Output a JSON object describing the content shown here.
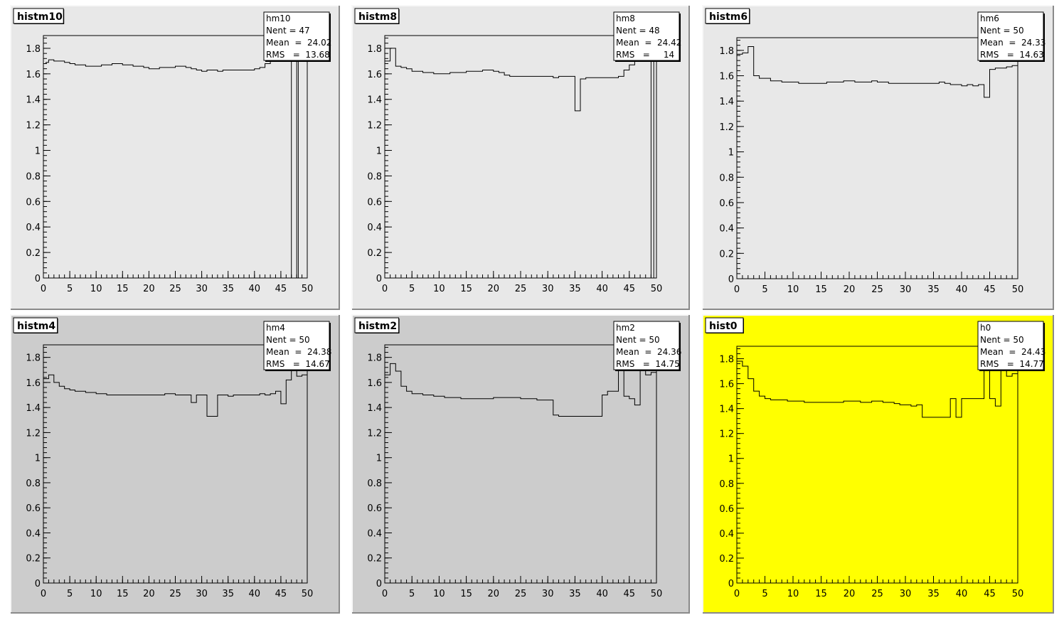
{
  "canvas": {
    "background": "#ffffff"
  },
  "chart_data": [
    {
      "type": "histogram",
      "pad_title": "histm10",
      "pad_color": "#e8e8e8",
      "stats": {
        "name": "hm10",
        "lines": [
          "Nent = 47",
          "Mean  =  24.02",
          "RMS   =  13.68"
        ]
      },
      "xlim": [
        0,
        50
      ],
      "ylim": [
        0,
        1.9
      ],
      "xticks": [
        "0",
        "5",
        "10",
        "15",
        "20",
        "25",
        "30",
        "35",
        "40",
        "45",
        "50"
      ],
      "yticks": [
        "0",
        "0.2",
        "0.4",
        "0.6",
        "0.8",
        "1",
        "1.2",
        "1.4",
        "1.6",
        "1.8"
      ],
      "bin_edges": [
        0,
        0.5,
        1,
        2,
        3,
        4,
        5,
        6,
        7,
        8,
        9,
        10,
        11,
        12,
        13,
        14,
        15,
        16,
        17,
        18,
        19,
        20,
        21,
        22,
        23,
        24,
        25,
        26,
        27,
        28,
        29,
        30,
        31,
        32,
        33,
        34,
        35,
        36,
        37,
        38,
        39,
        40,
        41,
        42,
        43,
        44,
        47,
        48,
        48.3,
        50
      ],
      "values": [
        1.68,
        1.69,
        1.71,
        1.7,
        1.7,
        1.69,
        1.68,
        1.67,
        1.67,
        1.66,
        1.66,
        1.66,
        1.67,
        1.67,
        1.68,
        1.68,
        1.67,
        1.67,
        1.66,
        1.66,
        1.65,
        1.64,
        1.64,
        1.65,
        1.65,
        1.65,
        1.66,
        1.66,
        1.65,
        1.64,
        1.63,
        1.62,
        1.63,
        1.63,
        1.62,
        1.63,
        1.63,
        1.63,
        1.63,
        1.63,
        1.63,
        1.64,
        1.65,
        1.68,
        1.9,
        1.9,
        0,
        1.9,
        0
      ]
    },
    {
      "type": "histogram",
      "pad_title": "histm8",
      "pad_color": "#e8e8e8",
      "stats": {
        "name": "hm8",
        "lines": [
          "Nent = 48",
          "Mean  =  24.42",
          "RMS   =     14"
        ]
      },
      "xlim": [
        0,
        50
      ],
      "ylim": [
        0,
        1.9
      ],
      "xticks": [
        "0",
        "5",
        "10",
        "15",
        "20",
        "25",
        "30",
        "35",
        "40",
        "45",
        "50"
      ],
      "yticks": [
        "0",
        "0.2",
        "0.4",
        "0.6",
        "0.8",
        "1",
        "1.2",
        "1.4",
        "1.6",
        "1.8"
      ],
      "bin_edges": [
        0,
        1,
        2,
        3,
        4,
        5,
        6,
        7,
        8,
        9,
        10,
        11,
        12,
        13,
        14,
        15,
        16,
        17,
        18,
        19,
        20,
        21,
        22,
        23,
        24,
        25,
        26,
        27,
        28,
        29,
        30,
        31,
        32,
        33,
        34,
        35,
        36,
        37,
        38,
        39,
        40,
        41,
        42,
        43,
        44,
        45,
        46,
        47,
        48,
        49,
        49.5,
        50
      ],
      "values": [
        1.7,
        1.8,
        1.66,
        1.65,
        1.64,
        1.62,
        1.62,
        1.61,
        1.61,
        1.6,
        1.6,
        1.6,
        1.61,
        1.61,
        1.61,
        1.62,
        1.62,
        1.62,
        1.63,
        1.63,
        1.62,
        1.61,
        1.59,
        1.58,
        1.58,
        1.58,
        1.58,
        1.58,
        1.58,
        1.58,
        1.58,
        1.57,
        1.58,
        1.58,
        1.58,
        1.31,
        1.56,
        1.57,
        1.57,
        1.57,
        1.57,
        1.57,
        1.57,
        1.58,
        1.63,
        1.67,
        1.7,
        1.74,
        1.9,
        0,
        1.9
      ]
    },
    {
      "type": "histogram",
      "pad_title": "histm6",
      "pad_color": "#e8e8e8",
      "stats": {
        "name": "hm6",
        "lines": [
          "Nent = 50",
          "Mean  =  24.33",
          "RMS   =  14.63"
        ]
      },
      "xlim": [
        0,
        50
      ],
      "ylim": [
        0,
        1.9
      ],
      "xticks": [
        "0",
        "5",
        "10",
        "15",
        "20",
        "25",
        "30",
        "35",
        "40",
        "45",
        "50"
      ],
      "yticks": [
        "0",
        "0.2",
        "0.4",
        "0.6",
        "0.8",
        "1",
        "1.2",
        "1.4",
        "1.6",
        "1.8"
      ],
      "bin_edges": [
        0,
        1,
        2,
        3,
        4,
        5,
        6,
        7,
        8,
        9,
        10,
        11,
        12,
        13,
        14,
        15,
        16,
        17,
        18,
        19,
        20,
        21,
        22,
        23,
        24,
        25,
        26,
        27,
        28,
        29,
        30,
        31,
        32,
        33,
        34,
        35,
        36,
        37,
        38,
        39,
        40,
        41,
        42,
        43,
        44,
        45,
        46,
        47,
        48,
        49,
        50
      ],
      "values": [
        1.77,
        1.78,
        1.83,
        1.6,
        1.58,
        1.58,
        1.56,
        1.56,
        1.55,
        1.55,
        1.55,
        1.54,
        1.54,
        1.54,
        1.54,
        1.54,
        1.55,
        1.55,
        1.55,
        1.56,
        1.56,
        1.55,
        1.55,
        1.55,
        1.56,
        1.55,
        1.55,
        1.54,
        1.54,
        1.54,
        1.54,
        1.54,
        1.54,
        1.54,
        1.54,
        1.54,
        1.55,
        1.54,
        1.53,
        1.53,
        1.52,
        1.53,
        1.52,
        1.53,
        1.43,
        1.65,
        1.66,
        1.66,
        1.67,
        1.68
      ]
    },
    {
      "type": "histogram",
      "pad_title": "histm4",
      "pad_color": "#cccccc",
      "stats": {
        "name": "hm4",
        "lines": [
          "Nent = 50",
          "Mean  =  24.38",
          "RMS   =  14.67"
        ]
      },
      "xlim": [
        0,
        50
      ],
      "ylim": [
        0,
        1.9
      ],
      "xticks": [
        "0",
        "5",
        "10",
        "15",
        "20",
        "25",
        "30",
        "35",
        "40",
        "45",
        "50"
      ],
      "yticks": [
        "0",
        "0.2",
        "0.4",
        "0.6",
        "0.8",
        "1",
        "1.2",
        "1.4",
        "1.6",
        "1.8"
      ],
      "bin_edges": [
        0,
        1,
        2,
        3,
        4,
        5,
        6,
        7,
        8,
        9,
        10,
        11,
        12,
        13,
        14,
        15,
        16,
        17,
        18,
        19,
        20,
        21,
        22,
        23,
        24,
        25,
        26,
        27,
        28,
        29,
        30,
        31,
        32,
        33,
        34,
        35,
        36,
        37,
        38,
        39,
        40,
        41,
        42,
        43,
        44,
        45,
        46,
        47,
        48,
        49,
        50
      ],
      "values": [
        1.63,
        1.66,
        1.6,
        1.57,
        1.55,
        1.54,
        1.53,
        1.53,
        1.52,
        1.52,
        1.51,
        1.51,
        1.5,
        1.5,
        1.5,
        1.5,
        1.5,
        1.5,
        1.5,
        1.5,
        1.5,
        1.5,
        1.5,
        1.51,
        1.51,
        1.5,
        1.5,
        1.5,
        1.44,
        1.5,
        1.5,
        1.33,
        1.33,
        1.5,
        1.5,
        1.49,
        1.5,
        1.5,
        1.5,
        1.5,
        1.5,
        1.51,
        1.5,
        1.51,
        1.53,
        1.43,
        1.62,
        1.7,
        1.65,
        1.66
      ]
    },
    {
      "type": "histogram",
      "pad_title": "histm2",
      "pad_color": "#cccccc",
      "stats": {
        "name": "hm2",
        "lines": [
          "Nent = 50",
          "Mean  =  24.36",
          "RMS   =  14.75"
        ]
      },
      "xlim": [
        0,
        50
      ],
      "ylim": [
        0,
        1.9
      ],
      "xticks": [
        "0",
        "5",
        "10",
        "15",
        "20",
        "25",
        "30",
        "35",
        "40",
        "45",
        "50"
      ],
      "yticks": [
        "0",
        "0.2",
        "0.4",
        "0.6",
        "0.8",
        "1",
        "1.2",
        "1.4",
        "1.6",
        "1.8"
      ],
      "bin_edges": [
        0,
        1,
        2,
        3,
        4,
        5,
        6,
        7,
        8,
        9,
        10,
        11,
        12,
        13,
        14,
        15,
        16,
        17,
        18,
        19,
        20,
        21,
        22,
        23,
        24,
        25,
        26,
        27,
        28,
        29,
        30,
        31,
        32,
        33,
        34,
        35,
        36,
        37,
        38,
        39,
        40,
        41,
        42,
        43,
        44,
        45,
        46,
        47,
        48,
        49,
        50
      ],
      "values": [
        1.66,
        1.75,
        1.69,
        1.57,
        1.53,
        1.51,
        1.51,
        1.5,
        1.5,
        1.49,
        1.49,
        1.48,
        1.48,
        1.48,
        1.47,
        1.47,
        1.47,
        1.47,
        1.47,
        1.47,
        1.48,
        1.48,
        1.48,
        1.48,
        1.48,
        1.47,
        1.47,
        1.47,
        1.46,
        1.46,
        1.46,
        1.34,
        1.33,
        1.33,
        1.33,
        1.33,
        1.33,
        1.33,
        1.33,
        1.33,
        1.5,
        1.53,
        1.53,
        1.9,
        1.49,
        1.47,
        1.42,
        1.9,
        1.66,
        1.68
      ]
    },
    {
      "type": "histogram",
      "pad_title": "hist0",
      "pad_color": "#ffff00",
      "stats": {
        "name": "h0",
        "lines": [
          "Nent = 50",
          "Mean  =  24.43",
          "RMS   =  14.77"
        ]
      },
      "xlim": [
        0,
        50
      ],
      "ylim": [
        0,
        1.9
      ],
      "xticks": [
        "0",
        "5",
        "10",
        "15",
        "20",
        "25",
        "30",
        "35",
        "40",
        "45",
        "50"
      ],
      "yticks": [
        "0",
        "0.2",
        "0.4",
        "0.6",
        "0.8",
        "1",
        "1.2",
        "1.4",
        "1.6",
        "1.8"
      ],
      "bin_edges": [
        0,
        1,
        2,
        3,
        4,
        5,
        6,
        7,
        8,
        9,
        10,
        11,
        12,
        13,
        14,
        15,
        16,
        17,
        18,
        19,
        20,
        21,
        22,
        23,
        24,
        25,
        26,
        27,
        28,
        29,
        30,
        31,
        32,
        33,
        34,
        35,
        36,
        37,
        38,
        39,
        40,
        41,
        42,
        43,
        44,
        45,
        46,
        47,
        48,
        49,
        50
      ],
      "values": [
        1.78,
        1.74,
        1.64,
        1.54,
        1.5,
        1.48,
        1.47,
        1.47,
        1.47,
        1.46,
        1.46,
        1.46,
        1.45,
        1.45,
        1.45,
        1.45,
        1.45,
        1.45,
        1.45,
        1.46,
        1.46,
        1.46,
        1.45,
        1.45,
        1.46,
        1.46,
        1.45,
        1.45,
        1.44,
        1.43,
        1.43,
        1.42,
        1.43,
        1.33,
        1.33,
        1.33,
        1.33,
        1.33,
        1.48,
        1.33,
        1.48,
        1.48,
        1.48,
        1.48,
        1.9,
        1.48,
        1.42,
        1.9,
        1.66,
        1.68
      ]
    }
  ]
}
